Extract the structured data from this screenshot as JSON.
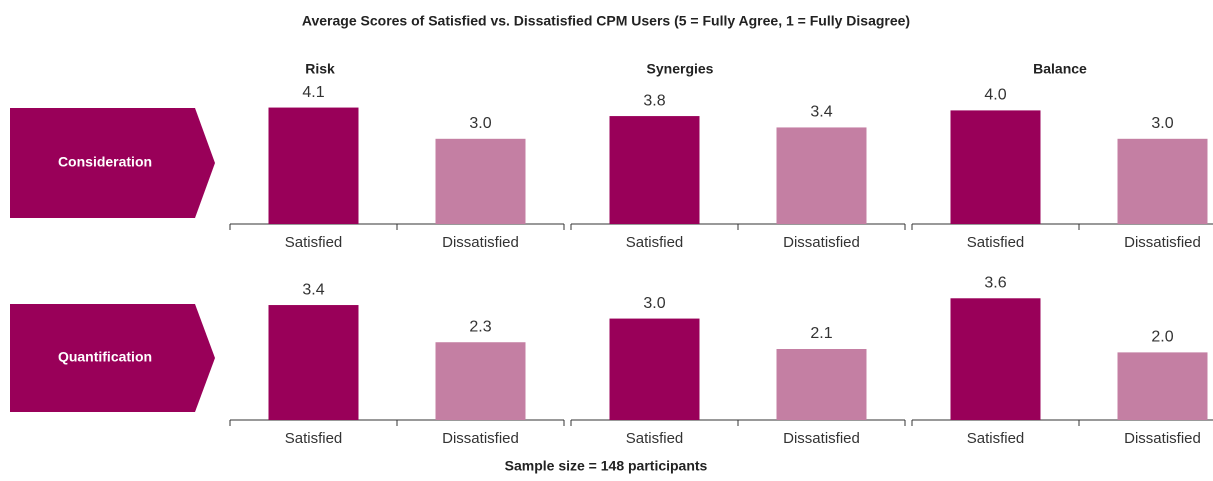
{
  "title": "Average Scores of Satisfied vs. Dissatisfied CPM Users (5 = Fully Agree, 1 = Fully Disagree)",
  "footnote": "Sample size = 148 participants",
  "columns": [
    "Risk",
    "Synergies",
    "Balance"
  ],
  "rows": [
    "Consideration",
    "Quantification"
  ],
  "chart_data": [
    {
      "type": "bar",
      "categories": [
        "Satisfied",
        "Dissatisfied"
      ],
      "values": [
        4.1,
        3.0
      ],
      "value_labels": [
        "4.1",
        "3.0"
      ],
      "colors": [
        "#990059",
        "#c47fa3"
      ],
      "ylim": [
        0,
        5
      ]
    },
    {
      "type": "bar",
      "categories": [
        "Satisfied",
        "Dissatisfied"
      ],
      "values": [
        3.8,
        3.4
      ],
      "value_labels": [
        "3.8",
        "3.4"
      ],
      "colors": [
        "#990059",
        "#c47fa3"
      ],
      "ylim": [
        0,
        5
      ]
    },
    {
      "type": "bar",
      "categories": [
        "Satisfied",
        "Dissatisfied"
      ],
      "values": [
        4.0,
        3.0
      ],
      "value_labels": [
        "4.0",
        "3.0"
      ],
      "colors": [
        "#990059",
        "#c47fa3"
      ],
      "ylim": [
        0,
        5
      ]
    },
    {
      "type": "bar",
      "categories": [
        "Satisfied",
        "Dissatisfied"
      ],
      "values": [
        3.4,
        2.3
      ],
      "value_labels": [
        "3.4",
        "2.3"
      ],
      "colors": [
        "#990059",
        "#c47fa3"
      ],
      "ylim": [
        0,
        4.2
      ]
    },
    {
      "type": "bar",
      "categories": [
        "Satisfied",
        "Dissatisfied"
      ],
      "values": [
        3.0,
        2.1
      ],
      "value_labels": [
        "3.0",
        "2.1"
      ],
      "colors": [
        "#990059",
        "#c47fa3"
      ],
      "ylim": [
        0,
        4.2
      ]
    },
    {
      "type": "bar",
      "categories": [
        "Satisfied",
        "Dissatisfied"
      ],
      "values": [
        3.6,
        2.0
      ],
      "value_labels": [
        "3.6",
        "2.0"
      ],
      "colors": [
        "#990059",
        "#c47fa3"
      ],
      "ylim": [
        0,
        4.2
      ]
    }
  ]
}
